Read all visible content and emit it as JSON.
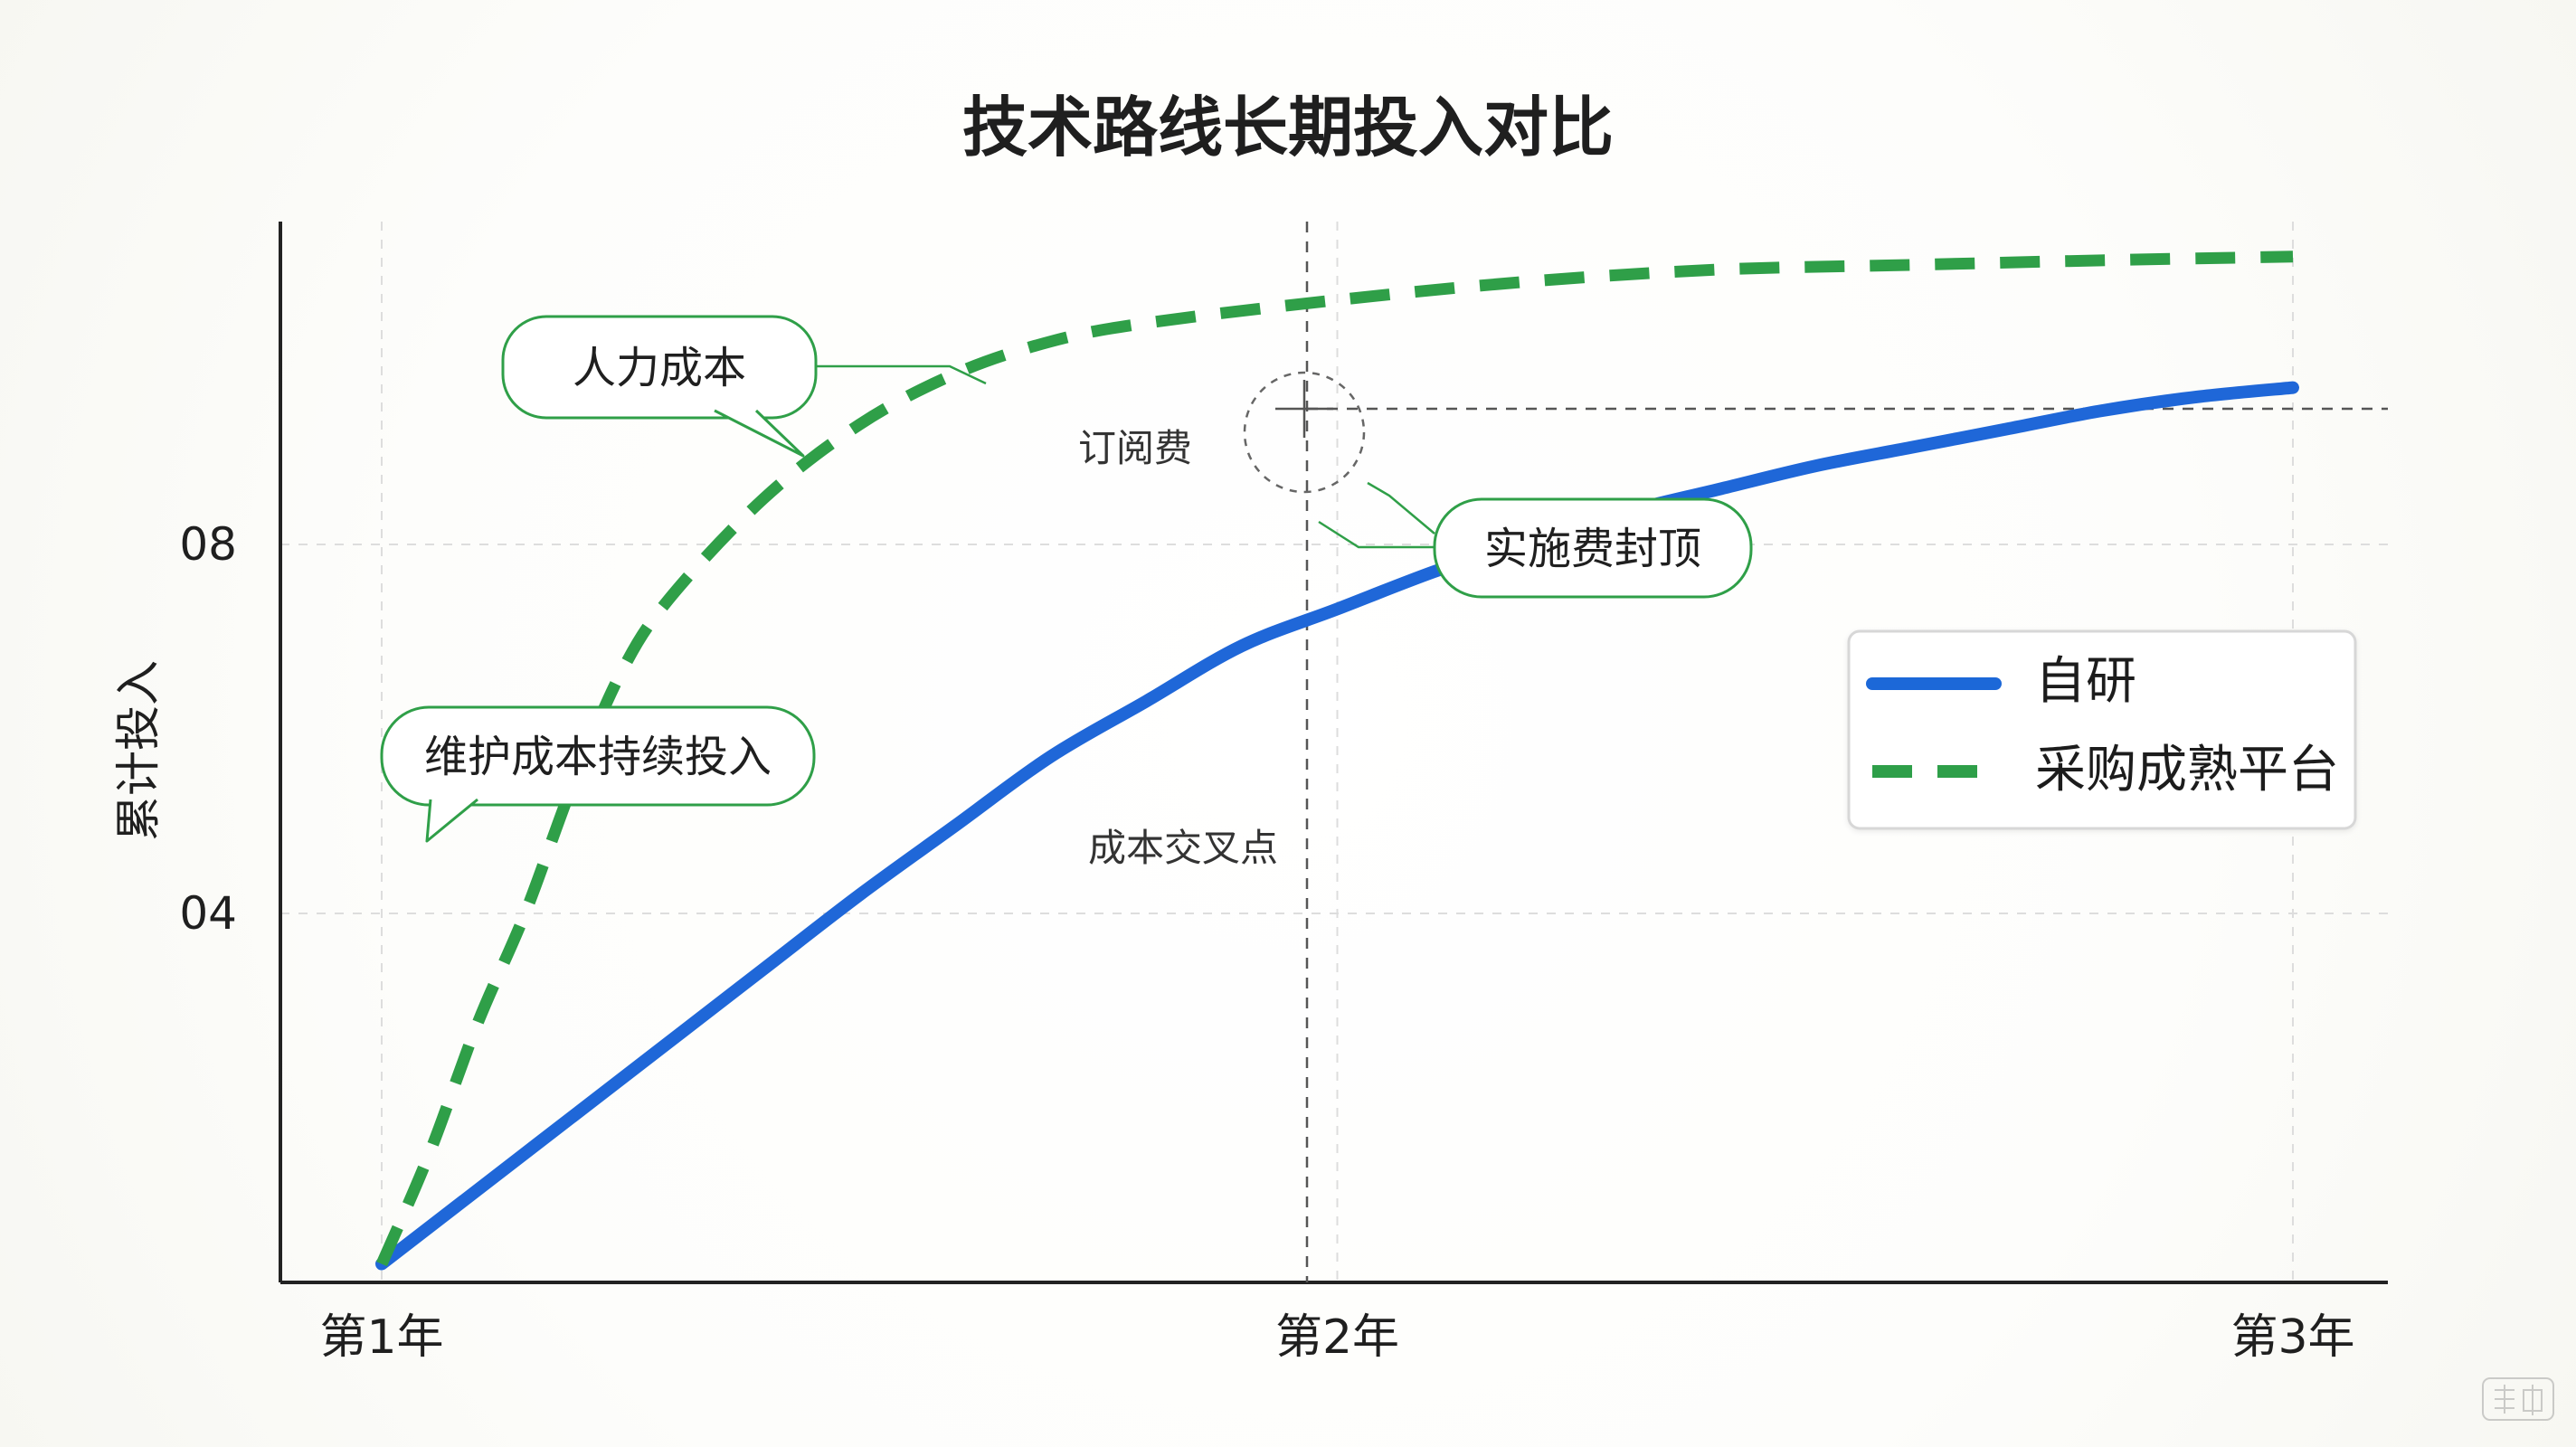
{
  "chart_data": {
    "type": "line",
    "title": "技术路线长期投入对比",
    "ylabel": "累计投入",
    "x_ticks": [
      "第1年",
      "第2年",
      "第3年"
    ],
    "y_ticks": [
      "08",
      "04"
    ],
    "legend_position": "right",
    "grid": true,
    "series": [
      {
        "name": "自研",
        "color": "#1f67d8",
        "style": "solid",
        "points": [
          [
            1.0,
            0.2
          ],
          [
            1.1,
            1.0
          ],
          [
            1.2,
            1.8
          ],
          [
            1.3,
            2.6
          ],
          [
            1.4,
            3.4
          ],
          [
            1.5,
            4.2
          ],
          [
            1.6,
            4.95
          ],
          [
            1.7,
            5.7
          ],
          [
            1.8,
            6.3
          ],
          [
            1.9,
            6.9
          ],
          [
            2.0,
            7.3
          ],
          [
            2.1,
            7.7
          ],
          [
            2.2,
            8.05
          ],
          [
            2.3,
            8.35
          ],
          [
            2.4,
            8.6
          ],
          [
            2.5,
            8.85
          ],
          [
            2.6,
            9.05
          ],
          [
            2.7,
            9.25
          ],
          [
            2.8,
            9.45
          ],
          [
            2.9,
            9.6
          ],
          [
            3.0,
            9.7
          ]
        ]
      },
      {
        "name": "采购成熟平台",
        "color": "#2f9f48",
        "style": "dashed",
        "points": [
          [
            1.0,
            0.2
          ],
          [
            1.05,
            1.4
          ],
          [
            1.1,
            2.8
          ],
          [
            1.15,
            4.0
          ],
          [
            1.2,
            5.4
          ],
          [
            1.25,
            6.6
          ],
          [
            1.3,
            7.4
          ],
          [
            1.4,
            8.5
          ],
          [
            1.5,
            9.3
          ],
          [
            1.6,
            9.85
          ],
          [
            1.7,
            10.2
          ],
          [
            1.8,
            10.4
          ],
          [
            2.0,
            10.65
          ],
          [
            2.2,
            10.85
          ],
          [
            2.4,
            10.98
          ],
          [
            2.6,
            11.03
          ],
          [
            2.8,
            11.08
          ],
          [
            3.0,
            11.12
          ]
        ]
      }
    ],
    "annotations": [
      {
        "id": "labor",
        "text": "人力成本"
      },
      {
        "id": "maintenance",
        "text": "维护成本持续投入"
      },
      {
        "id": "subscription",
        "text": "订阅费"
      },
      {
        "id": "cap",
        "text": "实施费封顶"
      },
      {
        "id": "crossover",
        "text": "成本交叉点"
      }
    ]
  },
  "watermark": "豆包"
}
